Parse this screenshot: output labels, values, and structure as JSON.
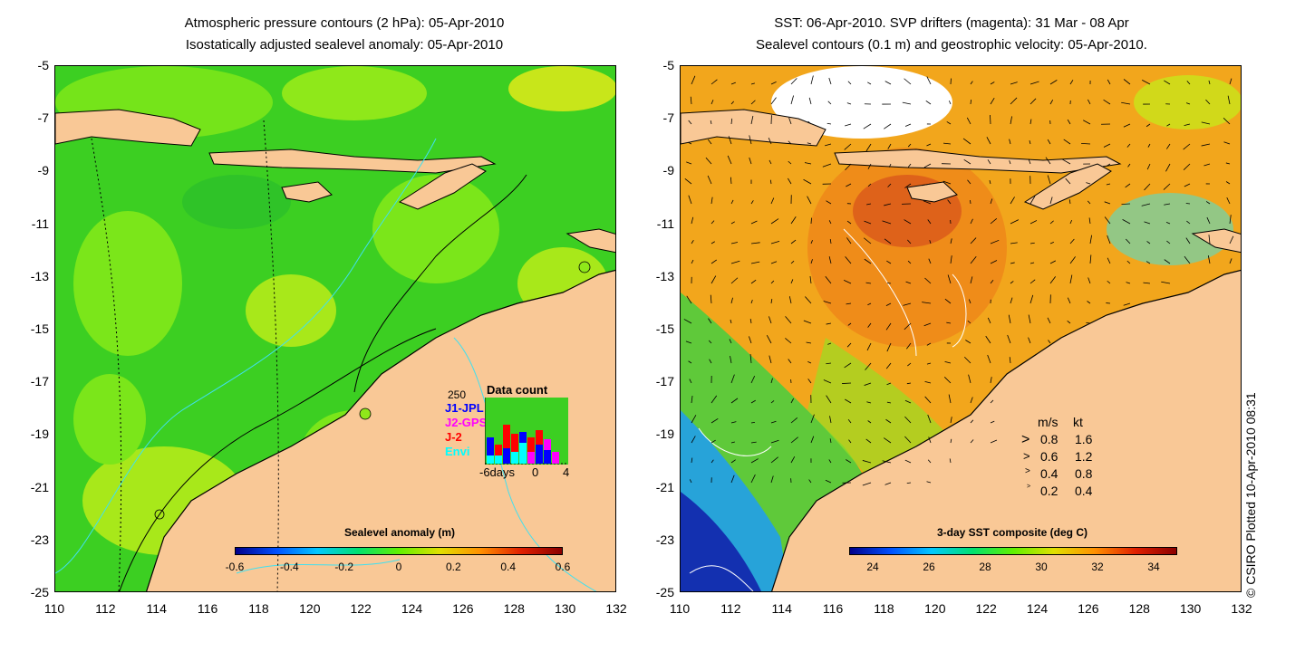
{
  "left": {
    "title_line1": "Atmospheric pressure contours (2 hPa): 05-Apr-2010",
    "title_line2": "Isostatically adjusted sealevel anomaly: 05-Apr-2010",
    "colorbar_title": "Sealevel anomaly (m)",
    "colorbar_ticks": [
      "-0.6",
      "-0.4",
      "-0.2",
      "0",
      "0.2",
      "0.4",
      "0.6"
    ],
    "colorbar_colors": [
      "#00008b",
      "#0050ff",
      "#00c8ff",
      "#00e070",
      "#60f000",
      "#e0e000",
      "#ff9000",
      "#e02000",
      "#8b0000"
    ],
    "data_count": {
      "title": "Data count",
      "ymax_label": "250",
      "legend": [
        {
          "label": "J1-JPL",
          "color": "#0000ff"
        },
        {
          "label": "J2-GPS",
          "color": "#ff00ff"
        },
        {
          "label": "J-2",
          "color": "#ff0000"
        },
        {
          "label": "Envi",
          "color": "#00ffff"
        }
      ],
      "xlabel_left": "-6days",
      "xlabel_mid": "0",
      "xlabel_right": "4"
    }
  },
  "right": {
    "title_line1": "SST: 06-Apr-2010. SVP drifters (magenta): 31 Mar - 08 Apr",
    "title_line2": "Sealevel contours (0.1 m) and geostrophic velocity: 05-Apr-2010.",
    "colorbar_title": "3-day SST composite (deg C)",
    "colorbar_ticks": [
      "24",
      "26",
      "28",
      "30",
      "32",
      "34"
    ],
    "colorbar_colors": [
      "#00008b",
      "#0050ff",
      "#00c8ff",
      "#00e070",
      "#60f000",
      "#e0e000",
      "#ff9000",
      "#e02000",
      "#8b0000"
    ],
    "velocity_legend": {
      "header_ms": "m/s",
      "header_kt": "kt",
      "rows": [
        {
          "ms": "0.8",
          "kt": "1.6"
        },
        {
          "ms": "0.6",
          "kt": "1.2"
        },
        {
          "ms": "0.4",
          "kt": "0.8"
        },
        {
          "ms": "0.2",
          "kt": "0.4"
        }
      ]
    }
  },
  "y_ticks": [
    "-5",
    "-7",
    "-9",
    "-11",
    "-13",
    "-15",
    "-17",
    "-19",
    "-21",
    "-23",
    "-25"
  ],
  "x_ticks": [
    "110",
    "112",
    "114",
    "116",
    "118",
    "120",
    "122",
    "124",
    "126",
    "128",
    "130",
    "132"
  ],
  "credit": "© CSIRO Plotted 10-Apr-2010 08:31",
  "colors": {
    "land": "#f9c896",
    "ocean_left": "#3cd01e",
    "ocean_right": "#f5a623",
    "contour": "#000000",
    "isobath": "#40e0f0"
  }
}
